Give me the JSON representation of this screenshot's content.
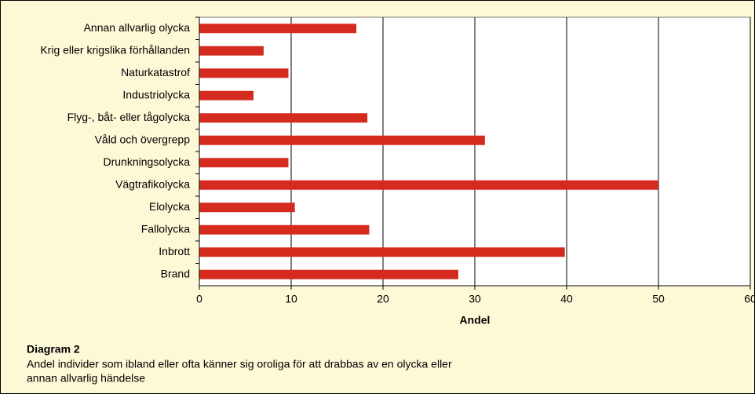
{
  "chart_data": {
    "type": "barh",
    "categories": [
      "Annan allvarlig olycka",
      "Krig eller krigslika förhållanden",
      "Naturkatastrof",
      "Industriolycka",
      "Flyg-, båt- eller tågolycka",
      "Våld och övergrepp",
      "Drunkningsolycka",
      "Vägtrafikolycka",
      "Elolycka",
      "Fallolycka",
      "Inbrott",
      "Brand"
    ],
    "values": [
      17.1,
      7.0,
      9.7,
      5.9,
      18.3,
      31.1,
      9.7,
      50.0,
      10.4,
      18.5,
      39.8,
      28.2
    ],
    "color": "#d52b1e",
    "xlabel": "Andel",
    "xlim": [
      0,
      60
    ],
    "xticks": [
      0,
      10,
      20,
      30,
      40,
      50,
      60
    ],
    "grid": true,
    "caption_title": "Diagram 2",
    "caption_lines": [
      "Andel individer som ibland eller ofta känner sig oroliga för att drabbas av en olycka eller",
      "annan allvarlig händelse"
    ]
  }
}
